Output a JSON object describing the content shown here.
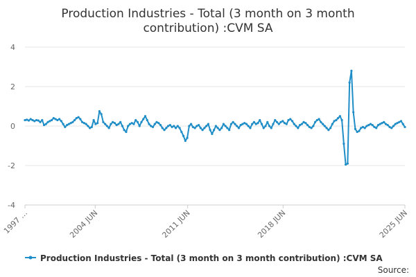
{
  "chart_data": {
    "type": "line",
    "title_lines": [
      "Production Industries - Total (3 month on 3 month",
      "contribution) :CVM SA"
    ],
    "series": [
      {
        "name": "Production Industries - Total (3 month on 3 month contribution) :CVM SA",
        "color": "#1f8dc7",
        "points": [
          [
            1997.0,
            0.3
          ],
          [
            1997.25,
            0.32
          ],
          [
            1997.5,
            0.28
          ],
          [
            1997.75,
            0.35
          ],
          [
            1998.0,
            0.3
          ],
          [
            1998.25,
            0.25
          ],
          [
            1998.5,
            0.3
          ],
          [
            1998.75,
            0.28
          ],
          [
            1999.0,
            0.2
          ],
          [
            1999.25,
            0.3
          ],
          [
            1999.5,
            0.05
          ],
          [
            1999.75,
            0.1
          ],
          [
            2000.0,
            0.2
          ],
          [
            2000.25,
            0.25
          ],
          [
            2000.5,
            0.3
          ],
          [
            2000.75,
            0.4
          ],
          [
            2001.0,
            0.35
          ],
          [
            2001.25,
            0.3
          ],
          [
            2001.5,
            0.35
          ],
          [
            2001.75,
            0.25
          ],
          [
            2002.0,
            0.1
          ],
          [
            2002.25,
            -0.05
          ],
          [
            2002.5,
            0.05
          ],
          [
            2002.75,
            0.1
          ],
          [
            2003.0,
            0.15
          ],
          [
            2003.25,
            0.2
          ],
          [
            2003.5,
            0.3
          ],
          [
            2003.75,
            0.4
          ],
          [
            2004.0,
            0.45
          ],
          [
            2004.25,
            0.35
          ],
          [
            2004.5,
            0.2
          ],
          [
            2004.75,
            0.15
          ],
          [
            2005.0,
            0.1
          ],
          [
            2005.25,
            0.0
          ],
          [
            2005.5,
            -0.1
          ],
          [
            2005.75,
            -0.05
          ],
          [
            2006.0,
            0.3
          ],
          [
            2006.25,
            0.1
          ],
          [
            2006.5,
            0.15
          ],
          [
            2006.75,
            0.75
          ],
          [
            2007.0,
            0.6
          ],
          [
            2007.25,
            0.2
          ],
          [
            2007.5,
            0.1
          ],
          [
            2007.75,
            0.0
          ],
          [
            2008.0,
            -0.1
          ],
          [
            2008.25,
            0.1
          ],
          [
            2008.5,
            0.2
          ],
          [
            2008.75,
            0.15
          ],
          [
            2009.0,
            0.05
          ],
          [
            2009.25,
            0.1
          ],
          [
            2009.5,
            0.2
          ],
          [
            2009.75,
            0.0
          ],
          [
            2010.0,
            -0.2
          ],
          [
            2010.25,
            -0.3
          ],
          [
            2010.5,
            0.0
          ],
          [
            2010.75,
            0.1
          ],
          [
            2011.0,
            0.15
          ],
          [
            2011.25,
            0.1
          ],
          [
            2011.5,
            0.3
          ],
          [
            2011.75,
            0.2
          ],
          [
            2012.0,
            0.0
          ],
          [
            2012.25,
            0.2
          ],
          [
            2012.5,
            0.35
          ],
          [
            2012.75,
            0.5
          ],
          [
            2013.0,
            0.3
          ],
          [
            2013.25,
            0.1
          ],
          [
            2013.5,
            0.0
          ],
          [
            2013.75,
            -0.05
          ],
          [
            2014.0,
            0.1
          ],
          [
            2014.25,
            0.2
          ],
          [
            2014.5,
            0.15
          ],
          [
            2014.75,
            0.05
          ],
          [
            2015.0,
            -0.1
          ],
          [
            2015.25,
            -0.2
          ],
          [
            2015.5,
            -0.1
          ],
          [
            2015.75,
            0.0
          ],
          [
            2016.0,
            0.05
          ],
          [
            2016.25,
            -0.05
          ],
          [
            2016.5,
            0.0
          ],
          [
            2016.75,
            -0.1
          ],
          [
            2017.0,
            0.0
          ],
          [
            2017.25,
            -0.1
          ],
          [
            2017.5,
            -0.3
          ],
          [
            2017.75,
            -0.5
          ],
          [
            2018.0,
            -0.75
          ],
          [
            2018.25,
            -0.6
          ],
          [
            2018.5,
            0.0
          ],
          [
            2018.75,
            0.1
          ],
          [
            2019.0,
            -0.05
          ],
          [
            2019.25,
            -0.1
          ],
          [
            2019.5,
            0.0
          ],
          [
            2019.75,
            0.05
          ],
          [
            2020.0,
            -0.1
          ],
          [
            2020.25,
            -0.2
          ],
          [
            2020.5,
            -0.1
          ],
          [
            2020.75,
            0.0
          ],
          [
            2021.0,
            0.1
          ],
          [
            2021.25,
            -0.2
          ],
          [
            2021.5,
            -0.4
          ],
          [
            2021.75,
            -0.2
          ],
          [
            2022.0,
            0.0
          ],
          [
            2022.25,
            -0.1
          ],
          [
            2022.5,
            -0.2
          ],
          [
            2022.75,
            -0.1
          ],
          [
            2023.0,
            0.1
          ],
          [
            2023.25,
            0.0
          ],
          [
            2023.5,
            -0.1
          ],
          [
            2023.75,
            -0.2
          ],
          [
            2024.0,
            0.1
          ],
          [
            2024.25,
            0.2
          ],
          [
            2024.5,
            0.1
          ],
          [
            2024.75,
            0.0
          ],
          [
            2025.0,
            -0.1
          ],
          [
            2025.25,
            0.05
          ],
          [
            2025.5,
            0.1
          ],
          [
            2025.75,
            0.15
          ],
          [
            2026.0,
            0.1
          ],
          [
            2026.25,
            0.0
          ],
          [
            2026.5,
            -0.1
          ],
          [
            2026.75,
            0.1
          ],
          [
            2027.0,
            0.2
          ],
          [
            2027.25,
            0.1
          ],
          [
            2027.5,
            0.15
          ],
          [
            2027.75,
            0.3
          ],
          [
            2028.0,
            0.1
          ],
          [
            2028.25,
            -0.1
          ],
          [
            2028.5,
            0.0
          ],
          [
            2028.75,
            0.2
          ],
          [
            2029.0,
            0.0
          ],
          [
            2029.25,
            -0.1
          ],
          [
            2029.5,
            0.1
          ],
          [
            2029.75,
            0.3
          ],
          [
            2030.0,
            0.2
          ],
          [
            2030.25,
            0.1
          ],
          [
            2030.5,
            0.2
          ],
          [
            2030.75,
            0.25
          ],
          [
            2031.0,
            0.15
          ],
          [
            2031.25,
            0.1
          ],
          [
            2031.5,
            0.3
          ],
          [
            2031.75,
            0.35
          ],
          [
            2032.0,
            0.25
          ],
          [
            2032.25,
            0.1
          ],
          [
            2032.5,
            0.0
          ],
          [
            2032.75,
            -0.1
          ],
          [
            2033.0,
            0.05
          ],
          [
            2033.25,
            0.1
          ],
          [
            2033.5,
            0.2
          ],
          [
            2033.75,
            0.15
          ],
          [
            2034.0,
            0.05
          ],
          [
            2034.25,
            -0.05
          ],
          [
            2034.5,
            -0.1
          ],
          [
            2034.75,
            0.0
          ],
          [
            2035.0,
            0.2
          ],
          [
            2035.25,
            0.3
          ],
          [
            2035.5,
            0.35
          ],
          [
            2035.75,
            0.2
          ],
          [
            2036.0,
            0.1
          ],
          [
            2036.25,
            0.0
          ],
          [
            2036.5,
            -0.1
          ],
          [
            2036.75,
            -0.2
          ],
          [
            2037.0,
            -0.1
          ],
          [
            2037.25,
            0.1
          ],
          [
            2037.5,
            0.25
          ],
          [
            2037.75,
            0.3
          ],
          [
            2038.0,
            0.4
          ],
          [
            2038.25,
            0.5
          ],
          [
            2038.5,
            0.3
          ],
          [
            2038.75,
            -0.9
          ],
          [
            2039.0,
            -1.95
          ],
          [
            2039.25,
            -1.9
          ],
          [
            2039.5,
            2.2
          ],
          [
            2039.75,
            2.8
          ],
          [
            2040.0,
            0.7
          ],
          [
            2040.25,
            -0.15
          ],
          [
            2040.5,
            -0.3
          ],
          [
            2040.75,
            -0.25
          ],
          [
            2041.0,
            -0.1
          ],
          [
            2041.25,
            -0.05
          ],
          [
            2041.5,
            -0.1
          ],
          [
            2041.75,
            0.0
          ],
          [
            2042.0,
            0.05
          ],
          [
            2042.25,
            0.1
          ],
          [
            2042.5,
            0.05
          ],
          [
            2042.75,
            -0.05
          ],
          [
            2043.0,
            -0.1
          ],
          [
            2043.25,
            0.05
          ],
          [
            2043.5,
            0.1
          ],
          [
            2043.75,
            0.15
          ],
          [
            2044.0,
            0.2
          ],
          [
            2044.25,
            0.1
          ],
          [
            2044.5,
            0.05
          ],
          [
            2044.75,
            -0.05
          ],
          [
            2045.0,
            -0.1
          ],
          [
            2045.25,
            0.0
          ],
          [
            2045.5,
            0.1
          ],
          [
            2045.75,
            0.15
          ],
          [
            2046.0,
            0.2
          ],
          [
            2046.25,
            0.25
          ],
          [
            2046.5,
            0.1
          ],
          [
            2046.75,
            -0.05
          ]
        ]
      }
    ],
    "x_domain": [
      1997.0,
      2046.75
    ],
    "x_ticks": [
      {
        "x": 1997.0,
        "label": "1997 …"
      },
      {
        "x": 2006.2,
        "label": "2004 JUN"
      },
      {
        "x": 2018.3,
        "label": "2011 JUN"
      },
      {
        "x": 2030.8,
        "label": "2018 JUN"
      },
      {
        "x": 2046.75,
        "label": "2025 JUN"
      }
    ],
    "y_ticks": [
      4,
      2,
      0,
      -2,
      -4
    ],
    "ylim": [
      -4,
      4
    ],
    "grid": true,
    "legend_position": "bottom",
    "legend_label": "Production Industries - Total (3 month on 3 month contribution) :CVM SA",
    "source_label": "Source:"
  }
}
